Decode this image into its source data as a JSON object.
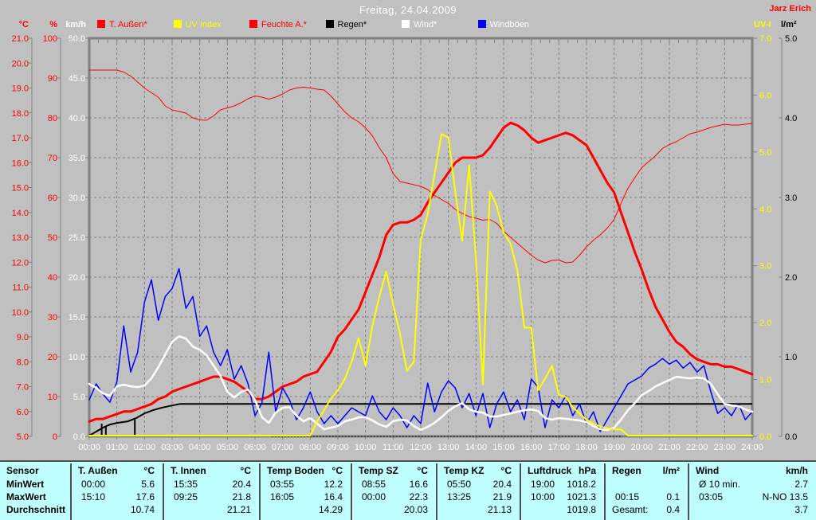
{
  "window": {
    "title": "Freitag, 24.04.2009",
    "watermark": "Jarz Erich"
  },
  "axes_headers": {
    "temp": "°C",
    "humidity": "%",
    "wind": "km/h",
    "uv": "UV-I",
    "rain": "l/m²"
  },
  "colors": {
    "background": "#c0c0c0",
    "grid": "#808080",
    "frame": "#808080",
    "title": "#ffffff",
    "watermark": "#ff0000",
    "x_labels": "#ffffff",
    "table_bg": "#c0ffff",
    "temp": "#ff0000",
    "humidity": "#ff0000",
    "uv": "#ffff00",
    "wind_avg": "#ffffff",
    "gusts": "#0000ff",
    "rain": "#000000"
  },
  "legend": {
    "items": [
      {
        "label": "T. Außen*",
        "swatch": "#ff0000",
        "text_color": "#ff0000"
      },
      {
        "label": "UV Index",
        "swatch": "#ffff00",
        "text_color": "#ffff00"
      },
      {
        "label": "Feuchte A.*",
        "swatch": "#ff0000",
        "text_color": "#ff0000"
      },
      {
        "label": "Regen*",
        "swatch": "#000000",
        "text_color": "#000000"
      },
      {
        "label": "Wind*",
        "swatch": "#ffffff",
        "text_color": "#ffffff"
      },
      {
        "label": "Windböen",
        "swatch": "#0000ff",
        "text_color": "#ffffff"
      }
    ]
  },
  "chart_data": {
    "type": "line",
    "title": "Freitag, 24.04.2009",
    "x_hours": [
      0,
      24
    ],
    "step_hours": 0.25,
    "x_ticks": [
      "00:00",
      "01:00",
      "02:00",
      "03:00",
      "04:00",
      "05:00",
      "06:00",
      "07:00",
      "08:00",
      "09:00",
      "10:00",
      "11:00",
      "12:00",
      "13:00",
      "14:00",
      "15:00",
      "16:00",
      "17:00",
      "18:00",
      "19:00",
      "20:00",
      "21:00",
      "22:00",
      "23:00",
      "24:00"
    ],
    "axes": {
      "temp": {
        "header": "°C",
        "color": "#ff0000",
        "range": [
          5,
          21
        ],
        "labels": [
          "21.0",
          "20.0",
          "19.0",
          "18.0",
          "17.0",
          "16.0",
          "15.0",
          "14.0",
          "13.0",
          "12.0",
          "11.0",
          "10.0",
          "9.0",
          "8.0",
          "7.0",
          "6.0",
          "5.0"
        ]
      },
      "humidity": {
        "header": "%",
        "color": "#ff0000",
        "range": [
          0,
          100
        ],
        "labels": [
          "100",
          "90",
          "80",
          "70",
          "60",
          "50",
          "40",
          "30",
          "20",
          "10",
          "0"
        ]
      },
      "wind": {
        "header": "km/h",
        "color": "#ffffff",
        "range": [
          0,
          50
        ],
        "labels": [
          "50.0",
          "45.0",
          "40.0",
          "35.0",
          "30.0",
          "25.0",
          "20.0",
          "15.0",
          "10.0",
          "5.0",
          "0.0"
        ]
      },
      "uv": {
        "header": "UV-I",
        "color": "#ffff00",
        "range": [
          0,
          7
        ],
        "labels": [
          "7.0",
          "6.0",
          "5.0",
          "4.0",
          "3.0",
          "2.0",
          "1.0",
          "0.0"
        ]
      },
      "rain": {
        "header": "l/m²",
        "color": "#000000",
        "range": [
          0,
          5
        ],
        "labels": [
          "5.0",
          "4.0",
          "3.0",
          "2.0",
          "1.0",
          "0.0"
        ]
      }
    },
    "series": [
      {
        "id": "humidity",
        "name": "Feuchte A.*",
        "axis": "humidity",
        "color": "#ff0000",
        "width": 1,
        "values": [
          92,
          92,
          92,
          92,
          92,
          91.5,
          90.5,
          89,
          87.5,
          86.3,
          85.2,
          83,
          82,
          81.6,
          81.2,
          80,
          79.5,
          79.4,
          80.5,
          82,
          82.5,
          83,
          83.8,
          84.8,
          85.5,
          85.2,
          84.7,
          85.2,
          86,
          87,
          87.5,
          87.7,
          87.5,
          87.2,
          87,
          85.5,
          83.5,
          81.5,
          80,
          79,
          77.5,
          75.5,
          72.5,
          70,
          66,
          64,
          63.6,
          63.2,
          62.8,
          62,
          60.5,
          59.5,
          58.5,
          57,
          56,
          55.2,
          54.8,
          54.3,
          54.5,
          53.5,
          51.5,
          50,
          48.5,
          47,
          45.5,
          44.3,
          43.6,
          44.2,
          44.3,
          43.6,
          43.8,
          45.5,
          47.6,
          49.3,
          50.6,
          52.3,
          54.5,
          58.5,
          62.3,
          65,
          67.5,
          69,
          70.5,
          72.3,
          73.3,
          74,
          75,
          76,
          76.4,
          77,
          77.6,
          78,
          78.4,
          78.2,
          78.2,
          78.4,
          78.6
        ]
      },
      {
        "id": "temp",
        "name": "T. Außen*",
        "axis": "temp",
        "color": "#ff0000",
        "width": 3,
        "values": [
          5.6,
          5.7,
          5.7,
          5.8,
          5.9,
          6.0,
          6.0,
          6.1,
          6.2,
          6.3,
          6.5,
          6.6,
          6.8,
          6.9,
          7.0,
          7.1,
          7.2,
          7.3,
          7.4,
          7.4,
          7.3,
          7.2,
          7.0,
          6.8,
          6.5,
          6.5,
          6.6,
          6.8,
          7.0,
          7.1,
          7.2,
          7.4,
          7.5,
          7.6,
          8.0,
          8.4,
          9.0,
          9.3,
          9.7,
          10.1,
          10.8,
          11.5,
          12.2,
          13.1,
          13.5,
          13.6,
          13.6,
          13.7,
          13.9,
          14.4,
          14.8,
          15.2,
          15.6,
          16.0,
          16.2,
          16.2,
          16.2,
          16.3,
          16.6,
          17.0,
          17.4,
          17.6,
          17.5,
          17.3,
          17.0,
          16.8,
          16.9,
          17.0,
          17.1,
          17.2,
          17.1,
          16.9,
          16.7,
          16.2,
          15.7,
          15.2,
          14.8,
          14.0,
          13.2,
          12.4,
          11.7,
          10.9,
          10.2,
          9.7,
          9.2,
          8.8,
          8.6,
          8.3,
          8.1,
          8.0,
          7.9,
          7.9,
          7.8,
          7.8,
          7.7,
          7.6,
          7.5
        ]
      },
      {
        "id": "gusts",
        "name": "Windböen",
        "axis": "wind",
        "color": "#0000ff",
        "width": 1.5,
        "values": [
          4.5,
          6.5,
          5.2,
          4.2,
          6.8,
          13.8,
          8.0,
          10.5,
          16.8,
          19.6,
          14.5,
          17.5,
          18.5,
          21.0,
          16.0,
          17.5,
          12.5,
          13.8,
          10.5,
          8.8,
          10.8,
          7.1,
          8.8,
          6.5,
          2.5,
          4.1,
          10.5,
          3.0,
          6.0,
          4.5,
          2.0,
          3.5,
          5.5,
          3.0,
          1.5,
          2.5,
          1.5,
          2.5,
          3.5,
          3.0,
          2.5,
          5.0,
          3.0,
          2.0,
          3.5,
          2.5,
          1.0,
          2.5,
          1.5,
          6.6,
          3.0,
          5.5,
          6.9,
          6.0,
          3.5,
          5.3,
          2.5,
          5.3,
          1.0,
          4.0,
          5.5,
          3.0,
          4.5,
          2.0,
          7.1,
          6.1,
          1.0,
          4.5,
          3.5,
          5.0,
          2.5,
          4.0,
          1.5,
          3.0,
          0.5,
          2.0,
          3.5,
          5.0,
          6.5,
          7.0,
          7.5,
          8.5,
          9.0,
          9.7,
          9.0,
          9.5,
          8.5,
          9.2,
          8.0,
          8.8,
          5.5,
          2.8,
          3.5,
          2.5,
          4.0,
          2.0,
          3.0
        ]
      },
      {
        "id": "wind",
        "name": "Wind*",
        "axis": "wind",
        "color": "#ffffff",
        "width": 2.5,
        "values": [
          6.5,
          6.0,
          5.3,
          5.0,
          6.2,
          6.4,
          6.2,
          6.1,
          6.3,
          7.2,
          8.6,
          10.2,
          11.8,
          12.5,
          12.2,
          11.2,
          10.8,
          10.1,
          8.8,
          7.5,
          5.5,
          4.8,
          5.5,
          5.8,
          4.5,
          2.3,
          1.6,
          2.9,
          3.5,
          3.6,
          2.5,
          1.8,
          2.2,
          1.5,
          0.8,
          1.0,
          1.2,
          1.8,
          2.0,
          2.3,
          2.3,
          1.9,
          1.4,
          1.1,
          1.8,
          2.0,
          1.9,
          1.2,
          0.7,
          1.1,
          1.6,
          2.3,
          3.1,
          3.7,
          4.1,
          3.3,
          3.0,
          2.9,
          2.4,
          2.4,
          2.6,
          2.8,
          3.0,
          3.2,
          3.3,
          3.1,
          2.2,
          2.0,
          2.2,
          2.1,
          2.0,
          1.9,
          1.7,
          1.2,
          0.8,
          0.7,
          1.0,
          2.0,
          3.2,
          4.1,
          5.1,
          5.6,
          6.2,
          6.6,
          7.0,
          7.4,
          7.3,
          7.2,
          7.3,
          7.2,
          6.5,
          5.2,
          4.0,
          3.8,
          3.7,
          3.3,
          3.0
        ]
      },
      {
        "id": "uv",
        "name": "UV Index",
        "axis": "uv",
        "color": "#ffff00",
        "width": 2,
        "values": [
          0,
          0,
          0,
          0,
          0,
          0,
          0,
          0,
          0,
          0,
          0,
          0,
          0,
          0,
          0,
          0,
          0,
          0,
          0,
          0,
          0,
          0,
          0,
          0,
          0,
          0,
          0,
          0,
          0,
          0,
          0,
          0,
          0,
          0.25,
          0.45,
          0.65,
          0.8,
          1.0,
          1.3,
          1.72,
          1.23,
          1.93,
          2.45,
          2.89,
          2.31,
          1.79,
          1.14,
          1.3,
          3.45,
          3.9,
          4.6,
          5.31,
          5.25,
          4.3,
          3.43,
          4.76,
          3.1,
          0.9,
          4.3,
          4.05,
          3.57,
          3.38,
          2.91,
          1.9,
          1.9,
          0.8,
          1.0,
          1.23,
          0.72,
          0.68,
          0.5,
          0.39,
          0.28,
          0.21,
          0.16,
          0.13,
          0.11,
          0.11,
          0,
          0,
          0,
          0,
          0,
          0,
          0,
          0,
          0,
          0,
          0,
          0,
          0,
          0,
          0,
          0,
          0,
          0,
          0
        ]
      }
    ],
    "rain_cumulative": {
      "id": "rain_total",
      "name": "Regen* (kumuliert)",
      "axis": "rain",
      "color": "#000000",
      "width": 2,
      "points": [
        [
          0,
          0.0
        ],
        [
          0.1,
          0.02
        ],
        [
          0.3,
          0.06
        ],
        [
          0.5,
          0.1
        ],
        [
          0.75,
          0.14
        ],
        [
          1.0,
          0.16
        ],
        [
          1.4,
          0.18
        ],
        [
          1.7,
          0.22
        ],
        [
          2.0,
          0.28
        ],
        [
          2.3,
          0.32
        ],
        [
          2.6,
          0.35
        ],
        [
          3.0,
          0.38
        ],
        [
          3.3,
          0.4
        ],
        [
          24,
          0.4
        ]
      ]
    },
    "rain_events": [
      [
        0.45,
        0.15
      ],
      [
        0.6,
        0.12
      ],
      [
        1.65,
        0.2
      ]
    ],
    "zero_dotted_line": {
      "from": 6.6,
      "to": 19.3,
      "value": 0,
      "color": "#000000"
    }
  },
  "table": {
    "row_labels": [
      "Sensor",
      "MinWert",
      "MaxWert",
      "Durchschnitt"
    ],
    "columns": [
      {
        "name": "T. Außen",
        "unit": "°C",
        "min": [
          "00:00",
          "5.6"
        ],
        "max": [
          "15:10",
          "17.6"
        ],
        "avg": [
          "",
          "10.74"
        ]
      },
      {
        "name": "T. Innen",
        "unit": "°C",
        "min": [
          "15:35",
          "20.4"
        ],
        "max": [
          "09:25",
          "21.8"
        ],
        "avg": [
          "",
          "21.21"
        ]
      },
      {
        "name": "Temp Boden",
        "unit": "°C",
        "min": [
          "03:55",
          "12.2"
        ],
        "max": [
          "16:05",
          "16.4"
        ],
        "avg": [
          "",
          "14.29"
        ]
      },
      {
        "name": "Temp SZ",
        "unit": "°C",
        "min": [
          "08:55",
          "16.6"
        ],
        "max": [
          "00:00",
          "22.3"
        ],
        "avg": [
          "",
          "20.03"
        ]
      },
      {
        "name": "Temp KZ",
        "unit": "°C",
        "min": [
          "05:50",
          "20.4"
        ],
        "max": [
          "13:25",
          "21.9"
        ],
        "avg": [
          "",
          "21.13"
        ]
      },
      {
        "name": "Luftdruck",
        "unit": "hPa",
        "min": [
          "19:00",
          "1018.2"
        ],
        "max": [
          "10:00",
          "1021.3"
        ],
        "avg": [
          "",
          "1019.8"
        ]
      },
      {
        "name": "Regen",
        "unit": "l/m²",
        "min": [
          "",
          ""
        ],
        "max": [
          "00:15",
          "0.1"
        ],
        "avg": [
          "Gesamt:",
          "0.4"
        ]
      },
      {
        "name": "Wind",
        "unit": "km/h",
        "min": [
          "Ø 10 min.",
          "2.7"
        ],
        "max": [
          "03:05",
          "N-NO 13.5"
        ],
        "avg": [
          "",
          "3.7"
        ]
      }
    ]
  }
}
